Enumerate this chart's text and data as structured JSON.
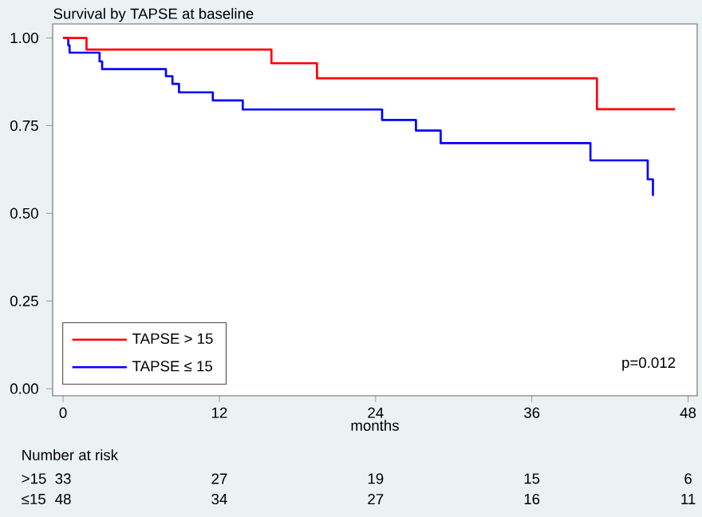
{
  "chart_data": {
    "type": "step",
    "title": "Survival by TAPSE at baseline",
    "xlabel": "months",
    "x": [
      0,
      1.8,
      16,
      19.5,
      41,
      47
    ],
    "series": [
      {
        "name": "TAPSE  > 15",
        "color": "#ff0000",
        "values": [
          1,
          0.967,
          0.928,
          0.885,
          0.797,
          0.797
        ]
      },
      {
        "name": "TAPSE  ≤ 15",
        "color": "#0000ff",
        "x": [
          0,
          0.4,
          0.5,
          2.8,
          3,
          7.9,
          8.4,
          8.9,
          11.5,
          13.8,
          24.5,
          27.1,
          29,
          40.5,
          44.9,
          45.3
        ],
        "values": [
          1,
          0.979,
          0.958,
          0.933,
          0.911,
          0.891,
          0.869,
          0.845,
          0.822,
          0.796,
          0.766,
          0.736,
          0.7,
          0.651,
          0.597,
          0.55
        ]
      }
    ],
    "xlim": [
      -0.8,
      48.7
    ],
    "ylim": [
      -0.02,
      1.04
    ],
    "xticks": [
      0,
      12,
      24,
      36,
      48
    ],
    "yticks": [
      {
        "value": 0,
        "label": "0.00"
      },
      {
        "value": 0.25,
        "label": "0.25"
      },
      {
        "value": 0.5,
        "label": "0.50"
      },
      {
        "value": 0.75,
        "label": "0.75"
      },
      {
        "value": 1,
        "label": "1.00"
      }
    ],
    "grid": false,
    "legend": "bottom left",
    "annotations": [
      "p=0.012",
      "Number at risk",
      ">15",
      "33",
      "27",
      "19",
      "15",
      "6",
      "≤15",
      "48",
      "34",
      "27",
      "16",
      "11"
    ]
  }
}
